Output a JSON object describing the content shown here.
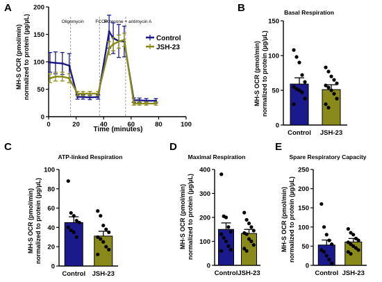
{
  "chart_data": [
    {
      "letter": "A",
      "type": "line",
      "title": "",
      "xlabel": "Time (minutes)",
      "ylabel_lines": [
        "MH-S OCR (pmol/min)",
        "normalized to protein (µg/µL)"
      ],
      "xlim": [
        0,
        100
      ],
      "ylim": [
        0,
        200
      ],
      "xticks": [
        "0",
        "20",
        "40",
        "60",
        "80",
        "100"
      ],
      "yticks": [
        "0",
        "50",
        "100",
        "150",
        "200"
      ],
      "injections": [
        {
          "label": "Oligomycin",
          "x": 16
        },
        {
          "label": "FCCP",
          "x": 37
        },
        {
          "label": "Rotenone + antimycin A",
          "x": 56
        }
      ],
      "legend_position": "top-right",
      "series": [
        {
          "name": "Control",
          "color": "#1a1a8c",
          "x": [
            1,
            5,
            10,
            15,
            21,
            25,
            30,
            36,
            44,
            47,
            51,
            55,
            62,
            66,
            71,
            78
          ],
          "y": [
            99,
            98,
            97,
            93,
            36,
            36,
            35,
            36,
            155,
            143,
            138,
            137,
            30,
            30,
            29,
            29
          ],
          "err": [
            18,
            20,
            20,
            22,
            4,
            4,
            4,
            4,
            30,
            28,
            30,
            28,
            4,
            4,
            4,
            4
          ]
        },
        {
          "name": "JSH-23",
          "color": "#8a8a1a",
          "x": [
            1,
            5,
            10,
            15,
            21,
            25,
            30,
            36,
            44,
            47,
            51,
            55,
            62,
            66,
            71,
            78
          ],
          "y": [
            70,
            73,
            73,
            70,
            42,
            42,
            42,
            42,
            125,
            132,
            137,
            140,
            24,
            24,
            24,
            24
          ],
          "err": [
            8,
            8,
            8,
            8,
            4,
            4,
            4,
            4,
            12,
            12,
            12,
            12,
            3,
            3,
            3,
            3
          ]
        }
      ]
    },
    {
      "letter": "B",
      "type": "bar",
      "title": "Basal Respiration",
      "ylabel_lines": [
        "MH-S OCR (pmol/min)",
        "normalized to protein (µg/µL)"
      ],
      "ylim": [
        0,
        150
      ],
      "yticks": [
        "0",
        "50",
        "100",
        "150"
      ],
      "categories": [
        "Control",
        "JSH-23"
      ],
      "colors": [
        "#1a1a8c",
        "#8a8a1a"
      ],
      "values": [
        59,
        51
      ],
      "sem": [
        9,
        7
      ],
      "points": [
        [
          108,
          98,
          90,
          72,
          62,
          55,
          52,
          50,
          47,
          38,
          30
        ],
        [
          83,
          77,
          70,
          65,
          60,
          57,
          54,
          50,
          45,
          38,
          30,
          25
        ]
      ]
    },
    {
      "letter": "C",
      "type": "bar",
      "title": "ATP-linked Respiration",
      "ylabel_lines": [
        "MH-S OCR (pmol/min)",
        "normalized to protein (µg/µL)"
      ],
      "ylim": [
        0,
        100
      ],
      "yticks": [
        "0",
        "20",
        "40",
        "60",
        "80",
        "100"
      ],
      "categories": [
        "Control",
        "JSH-23"
      ],
      "colors": [
        "#1a1a8c",
        "#8a8a1a"
      ],
      "values": [
        45,
        31
      ],
      "sem": [
        6,
        5
      ],
      "points": [
        [
          88,
          55,
          52,
          47,
          45,
          40,
          37,
          35,
          30
        ],
        [
          57,
          52,
          42,
          38,
          35,
          30,
          28,
          25,
          20,
          17,
          12
        ]
      ]
    },
    {
      "letter": "D",
      "type": "bar",
      "title": "Maximal Respiration",
      "ylabel_lines": [
        "MH-S OCR (pmol/min)",
        "normalized to protein (µg/µL)"
      ],
      "ylim": [
        0,
        400
      ],
      "yticks": [
        "0",
        "100",
        "200",
        "300",
        "400"
      ],
      "categories": [
        "Control",
        "JSH-23"
      ],
      "colors": [
        "#1a1a8c",
        "#8a8a1a"
      ],
      "values": [
        150,
        133
      ],
      "sem": [
        27,
        17
      ],
      "points": [
        [
          380,
          205,
          200,
          160,
          140,
          130,
          115,
          100,
          80,
          65,
          60
        ],
        [
          220,
          190,
          175,
          160,
          145,
          135,
          130,
          110,
          100,
          85,
          70,
          60
        ]
      ]
    },
    {
      "letter": "E",
      "type": "bar",
      "title": "Spare Respiratory Capacity",
      "ylabel_lines": [
        "MH-S OCR (pmol/min)",
        "normalized to protein (µg/µL)"
      ],
      "ylim": [
        0,
        250
      ],
      "yticks": [
        "0",
        "50",
        "100",
        "150",
        "200",
        "250"
      ],
      "categories": [
        "Control",
        "JSH-23"
      ],
      "colors": [
        "#1a1a8c",
        "#8a8a1a"
      ],
      "values": [
        53,
        61
      ],
      "sem": [
        13,
        9
      ],
      "points": [
        [
          160,
          100,
          80,
          65,
          55,
          40,
          35,
          25,
          15,
          5
        ],
        [
          95,
          85,
          80,
          70,
          65,
          60,
          55,
          50,
          45,
          40,
          35,
          30
        ]
      ]
    }
  ]
}
